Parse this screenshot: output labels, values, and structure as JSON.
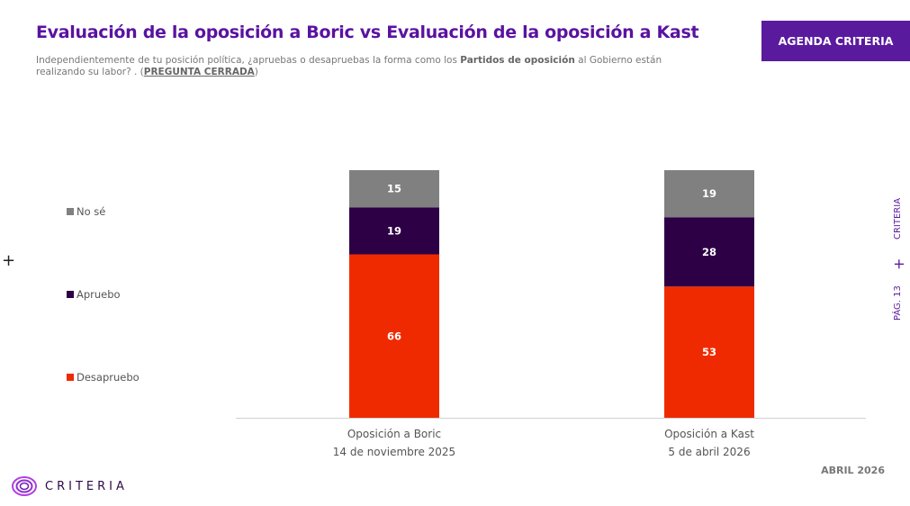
{
  "header": {
    "title": "Evaluación de la oposición a Boric vs Evaluación de la oposición a Kast",
    "subtitle_pre": "Independientemente de tu posición política, ¿apruebas o desapruebas la forma como los ",
    "subtitle_bold": "Partidos de oposición",
    "subtitle_post": " al Gobierno están realizando su labor? . (",
    "subtitle_tag": "PREGUNTA CERRADA",
    "subtitle_end": ")",
    "button": "AGENDA CRITERIA"
  },
  "side": {
    "brand": "CRITERIA",
    "page": "PÁG. 13"
  },
  "footer": {
    "date": "ABRIL 2026",
    "logo": "CRITERIA"
  },
  "chart_data": {
    "type": "bar",
    "stacked": true,
    "ylim": [
      0,
      100
    ],
    "categories": [
      "Oposición a Boric\n14 de noviembre 2025",
      "Oposición a Kast\n5 de abril 2026"
    ],
    "category_lines": [
      [
        "Oposición a Boric",
        "14 de noviembre 2025"
      ],
      [
        "Oposición a Kast",
        "5 de abril 2026"
      ]
    ],
    "series": [
      {
        "name": "Desapruebo",
        "color": "#f02a00",
        "values": [
          66,
          53
        ]
      },
      {
        "name": "Apruebo",
        "color": "#2d0045",
        "values": [
          19,
          28
        ]
      },
      {
        "name": "No sé",
        "color": "#808080",
        "values": [
          15,
          19
        ]
      }
    ],
    "legend": "left"
  }
}
